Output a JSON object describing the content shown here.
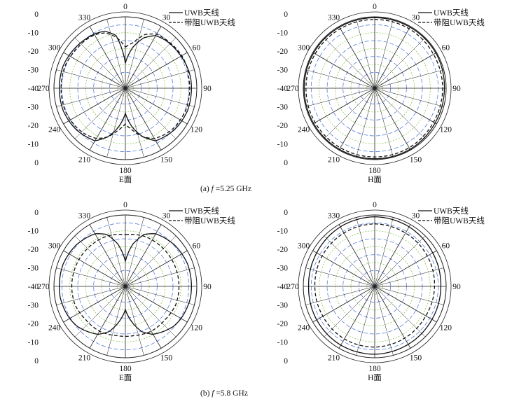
{
  "figure": {
    "panels": [
      {
        "id": "a-E",
        "plane_label": "E面"
      },
      {
        "id": "a-H",
        "plane_label": "H面"
      },
      {
        "id": "b-E",
        "plane_label": "E面"
      },
      {
        "id": "b-H",
        "plane_label": "H面"
      }
    ],
    "rows": [
      {
        "prefix": "(a) ",
        "f_symbol": "f",
        "freq_text": " =5.25 GHz"
      },
      {
        "prefix": "(b) ",
        "f_symbol": "f",
        "freq_text": " =5.8 GHz"
      }
    ],
    "colors": {
      "axis": "#222222",
      "grid_green": "#7fbf3f",
      "grid_blue": "#3f6fd8",
      "series_uwb": "#111111",
      "series_notch": "#111111"
    }
  },
  "chart_data": [
    {
      "type": "polar-line",
      "panel": "a-E",
      "xlabel": "E面",
      "angle_ticks": [
        "0",
        "30",
        "60",
        "90",
        "120",
        "150",
        "180",
        "210",
        "240",
        "270",
        "300",
        "330"
      ],
      "radial_ticks": [
        "0",
        "-10",
        "-20",
        "-30",
        "-40",
        "-30",
        "-20",
        "-10",
        "0"
      ],
      "r_range": [
        -40,
        0
      ],
      "legend": [
        "UWB天线",
        "带阻UWB天线"
      ],
      "legend_position": "top-right",
      "angles_deg": [
        0,
        10,
        20,
        30,
        40,
        50,
        60,
        70,
        80,
        90,
        100,
        110,
        120,
        130,
        140,
        150,
        160,
        170,
        180,
        190,
        200,
        210,
        220,
        230,
        240,
        250,
        260,
        270,
        280,
        290,
        300,
        310,
        320,
        330,
        340,
        350
      ],
      "series": [
        {
          "name": "UWB天线",
          "style": "solid",
          "values": [
            -26,
            -17,
            -10,
            -6,
            -5,
            -4.5,
            -4,
            -3.5,
            -3,
            -3,
            -3,
            -3,
            -3.5,
            -4,
            -5,
            -6,
            -11,
            -18,
            -26,
            -18,
            -11,
            -6,
            -5,
            -4,
            -3.5,
            -3,
            -3,
            -3,
            -3,
            -3,
            -3.5,
            -4,
            -4.5,
            -5,
            -6,
            -10
          ]
        },
        {
          "name": "带阻UWB天线",
          "style": "dashed",
          "values": [
            -17,
            -14,
            -8,
            -5,
            -4.5,
            -4,
            -3.5,
            -3.5,
            -4,
            -4,
            -4,
            -4,
            -4.5,
            -5,
            -6,
            -7.5,
            -11,
            -16,
            -20,
            -16,
            -11,
            -7.5,
            -6,
            -5,
            -4.5,
            -4,
            -4,
            -4,
            -4,
            -4,
            -4.5,
            -5,
            -5,
            -5.5,
            -7,
            -11
          ]
        }
      ]
    },
    {
      "type": "polar-line",
      "panel": "a-H",
      "xlabel": "H面",
      "angle_ticks": [
        "0",
        "30",
        "60",
        "90",
        "120",
        "150",
        "180",
        "210",
        "240",
        "270",
        "300",
        "330"
      ],
      "radial_ticks": [
        "0",
        "-10",
        "-20",
        "-30",
        "-40",
        "-30",
        "-20",
        "-10",
        "0"
      ],
      "r_range": [
        -40,
        0
      ],
      "legend": [
        "UWB天线",
        "带阻UWB天线"
      ],
      "legend_position": "top-right",
      "angles_deg": [
        0,
        30,
        60,
        90,
        120,
        150,
        180,
        210,
        240,
        270,
        300,
        330
      ],
      "series": [
        {
          "name": "UWB天线",
          "style": "solid",
          "values": [
            -0.5,
            -0.5,
            -0.5,
            -1,
            -1,
            -0.5,
            -0.5,
            -0.5,
            -0.5,
            -0.5,
            -0.5,
            -0.5
          ]
        },
        {
          "name": "带阻UWB天线",
          "style": "dashed",
          "values": [
            -1.5,
            -1.5,
            -2,
            -2,
            -2,
            -1.5,
            -1.5,
            -1.5,
            -1.5,
            -1.5,
            -1.5,
            -1.5
          ]
        }
      ]
    },
    {
      "type": "polar-line",
      "panel": "b-E",
      "xlabel": "E面",
      "angle_ticks": [
        "0",
        "30",
        "60",
        "90",
        "120",
        "150",
        "180",
        "210",
        "240",
        "270",
        "300",
        "330"
      ],
      "radial_ticks": [
        "0",
        "-10",
        "-20",
        "-30",
        "-40",
        "-30",
        "-20",
        "-10",
        "0"
      ],
      "r_range": [
        -40,
        0
      ],
      "legend": [
        "UWB天线",
        "带阻UWB天线"
      ],
      "legend_position": "top-right",
      "angles_deg": [
        0,
        10,
        20,
        30,
        40,
        50,
        60,
        70,
        80,
        90,
        100,
        110,
        120,
        130,
        140,
        150,
        160,
        170,
        180,
        190,
        200,
        210,
        220,
        230,
        240,
        250,
        260,
        270,
        280,
        290,
        300,
        310,
        320,
        330,
        340,
        350
      ],
      "series": [
        {
          "name": "UWB天线",
          "style": "solid",
          "values": [
            -26,
            -16,
            -9,
            -6,
            -5,
            -4,
            -3.5,
            -3,
            -3,
            -3,
            -3,
            -3.5,
            -4,
            -5,
            -7,
            -9,
            -13,
            -20,
            -27,
            -20,
            -13,
            -9,
            -7,
            -5,
            -4,
            -3.5,
            -3,
            -3,
            -3,
            -3,
            -3.5,
            -4,
            -5,
            -6,
            -9,
            -16
          ]
        },
        {
          "name": "带阻UWB天线",
          "style": "dashed",
          "values": [
            -11,
            -10.5,
            -10,
            -10,
            -10,
            -10,
            -10,
            -10,
            -10,
            -10,
            -10,
            -10,
            -10.5,
            -11,
            -11,
            -11,
            -11.5,
            -12,
            -12,
            -12,
            -11.5,
            -11,
            -11,
            -11,
            -10.5,
            -10,
            -10,
            -10,
            -10,
            -10,
            -10,
            -10,
            -10,
            -10,
            -10,
            -10.5
          ]
        }
      ]
    },
    {
      "type": "polar-line",
      "panel": "b-H",
      "xlabel": "H面",
      "angle_ticks": [
        "0",
        "30",
        "60",
        "90",
        "120",
        "150",
        "180",
        "210",
        "240",
        "270",
        "300",
        "330"
      ],
      "radial_ticks": [
        "0",
        "-10",
        "-20",
        "-30",
        "-40",
        "-30",
        "-20",
        "-10",
        "0"
      ],
      "r_range": [
        -40,
        0
      ],
      "legend": [
        "UWB天线",
        "带阻UWB天线"
      ],
      "legend_position": "top-right",
      "angles_deg": [
        0,
        30,
        60,
        90,
        120,
        150,
        180,
        210,
        240,
        270,
        300,
        330
      ],
      "series": [
        {
          "name": "UWB天线",
          "style": "solid",
          "values": [
            -1,
            -1.5,
            -2.5,
            -3,
            -3,
            -2.5,
            -2,
            -2,
            -2.5,
            -3,
            -2.5,
            -1.5
          ]
        },
        {
          "name": "带阻UWB天线",
          "style": "dashed",
          "values": [
            -5,
            -5.5,
            -6,
            -6.5,
            -7,
            -6.5,
            -6,
            -6,
            -6.5,
            -6.5,
            -6,
            -5.5
          ]
        }
      ]
    }
  ]
}
